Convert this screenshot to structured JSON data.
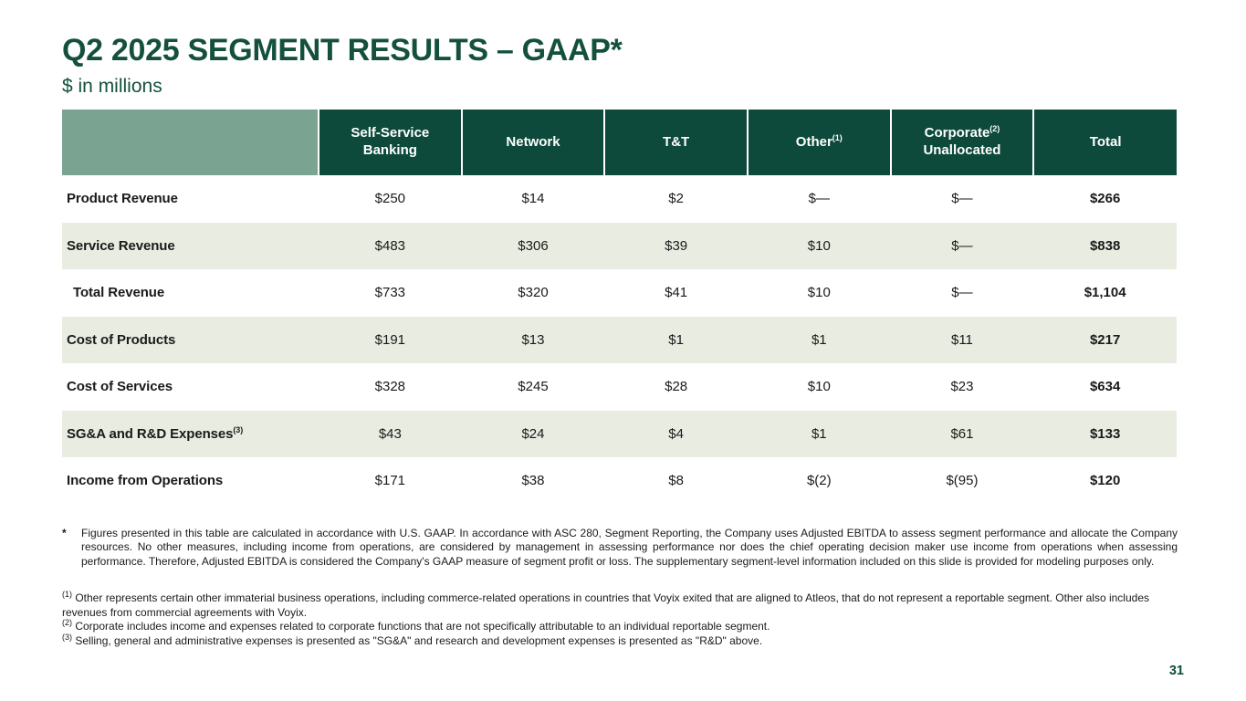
{
  "slide": {
    "title": "Q2 2025 SEGMENT RESULTS – GAAP*",
    "subtitle": "$ in millions",
    "page_number": "31"
  },
  "colors": {
    "dark_green": "#0d4a3b",
    "sage": "#7ba392",
    "row_alt": "#e9ece1",
    "title_green": "#14503e",
    "ink": "#1a1a1a"
  },
  "table": {
    "columns": [
      {
        "lines": [
          "Self-Service",
          "Banking"
        ],
        "sup": ""
      },
      {
        "lines": [
          "Network"
        ],
        "sup": ""
      },
      {
        "lines": [
          "T&T"
        ],
        "sup": ""
      },
      {
        "lines": [
          "Other"
        ],
        "sup": "(1)"
      },
      {
        "lines": [
          "Corporate",
          "Unallocated"
        ],
        "sup": "(2)"
      },
      {
        "lines": [
          "Total"
        ],
        "sup": ""
      }
    ],
    "rows": [
      {
        "label": "Product Revenue",
        "sup": "",
        "indent": false,
        "values": [
          "$250",
          "$14",
          "$2",
          "$—",
          "$—",
          "$266"
        ]
      },
      {
        "label": "Service Revenue",
        "sup": "",
        "indent": false,
        "values": [
          "$483",
          "$306",
          "$39",
          "$10",
          "$—",
          "$838"
        ]
      },
      {
        "label": "Total Revenue",
        "sup": "",
        "indent": true,
        "values": [
          "$733",
          "$320",
          "$41",
          "$10",
          "$—",
          "$1,104"
        ]
      },
      {
        "label": "Cost of Products",
        "sup": "",
        "indent": false,
        "values": [
          "$191",
          "$13",
          "$1",
          "$1",
          "$11",
          "$217"
        ]
      },
      {
        "label": "Cost of Services",
        "sup": "",
        "indent": false,
        "values": [
          "$328",
          "$245",
          "$28",
          "$10",
          "$23",
          "$634"
        ]
      },
      {
        "label": "SG&A and R&D Expenses",
        "sup": "(3)",
        "indent": false,
        "values": [
          "$43",
          "$24",
          "$4",
          "$1",
          "$61",
          "$133"
        ]
      },
      {
        "label": "Income from Operations",
        "sup": "",
        "indent": false,
        "values": [
          "$171",
          "$38",
          "$8",
          "$(2)",
          "$(95)",
          "$120"
        ]
      }
    ]
  },
  "footnotes": {
    "asterisk": {
      "marker": "*",
      "text": "Figures presented in this table are calculated in accordance with U.S. GAAP. In accordance with ASC 280, Segment Reporting, the Company uses Adjusted EBITDA to assess segment performance and allocate the Company resources. No other measures, including income from operations, are considered by management in assessing performance nor does the chief operating decision maker use income from operations when assessing performance. Therefore, Adjusted EBITDA is considered the Company's GAAP measure of segment profit or loss. The supplementary segment-level information included on this slide is provided for modeling purposes only."
    },
    "items": [
      {
        "marker": "(1)",
        "text": "Other represents certain other immaterial business operations, including commerce-related operations in countries that Voyix exited that are aligned to Atleos, that do not represent a reportable segment. Other also includes revenues from commercial agreements with Voyix."
      },
      {
        "marker": "(2)",
        "text": "Corporate includes income and expenses related to corporate functions that are not specifically attributable to an individual reportable segment."
      },
      {
        "marker": "(3)",
        "text": "Selling, general and administrative expenses is presented as \"SG&A\" and research and development expenses is presented as \"R&D\" above."
      }
    ]
  }
}
